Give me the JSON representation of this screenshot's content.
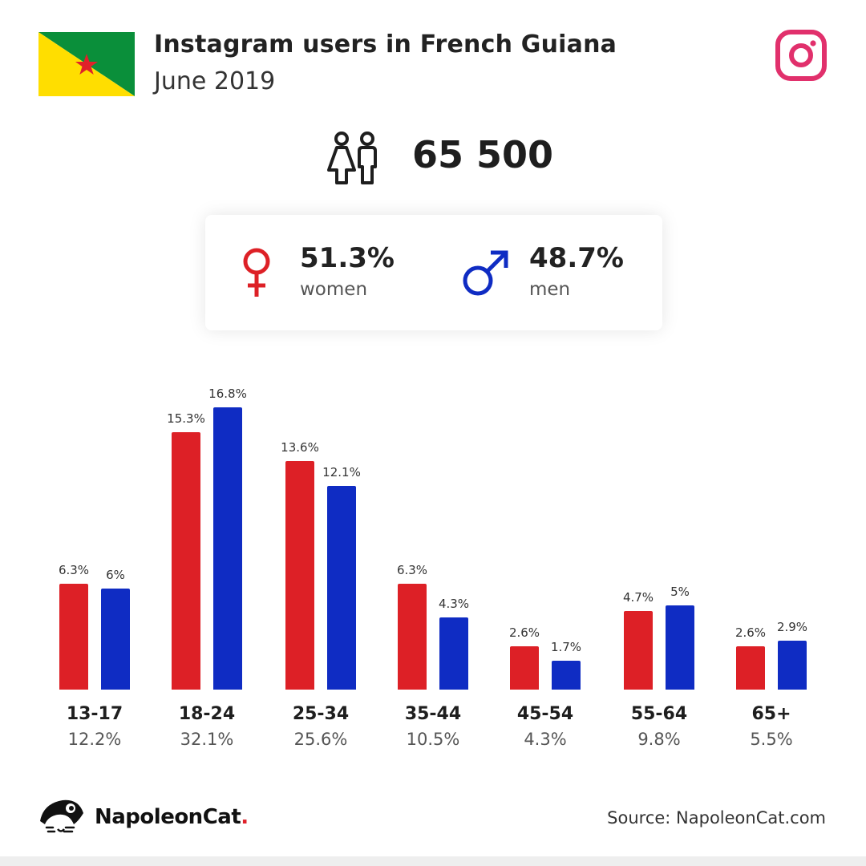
{
  "header": {
    "title": "Instagram users in French Guiana",
    "subtitle": "June 2019",
    "flag_icon": "french-guiana-flag",
    "brand_icon": "instagram-icon"
  },
  "total": {
    "value": "65 500",
    "icon": "people-icon"
  },
  "gender": {
    "women": {
      "pct": "51.3%",
      "label": "women",
      "icon": "female-symbol-icon",
      "color": "#dd2026"
    },
    "men": {
      "pct": "48.7%",
      "label": "men",
      "icon": "male-symbol-icon",
      "color": "#0f2cc3"
    }
  },
  "colors": {
    "women": "#dd2026",
    "men": "#0f2cc3",
    "instagram": "#e1306c",
    "flag_green": "#0a8f3a",
    "flag_yellow": "#ffde00",
    "flag_star": "#e0212a"
  },
  "chart_data": {
    "type": "bar",
    "categories": [
      "13-17",
      "18-24",
      "25-34",
      "35-44",
      "45-54",
      "55-64",
      "65+"
    ],
    "category_totals": [
      "12.2%",
      "32.1%",
      "25.6%",
      "10.5%",
      "4.3%",
      "9.8%",
      "5.5%"
    ],
    "series": [
      {
        "name": "women",
        "color": "#dd2026",
        "values": [
          6.3,
          15.3,
          13.6,
          6.3,
          2.6,
          4.7,
          2.6
        ],
        "labels": [
          "6.3%",
          "15.3%",
          "13.6%",
          "6.3%",
          "2.6%",
          "4.7%",
          "2.6%"
        ]
      },
      {
        "name": "men",
        "color": "#0f2cc3",
        "values": [
          6.0,
          16.8,
          12.1,
          4.3,
          1.7,
          5.0,
          2.9
        ],
        "labels": [
          "6%",
          "16.8%",
          "12.1%",
          "4.3%",
          "1.7%",
          "5%",
          "2.9%"
        ]
      }
    ],
    "title": "",
    "xlabel": "",
    "ylabel": "",
    "ylim": [
      0,
      16.8
    ],
    "grid": false,
    "legend": "none"
  },
  "footer": {
    "brand": "NapoleonCat",
    "brand_dot": ".",
    "brand_icon": "napoleoncat-logo-icon",
    "source": "Source: NapoleonCat.com"
  }
}
